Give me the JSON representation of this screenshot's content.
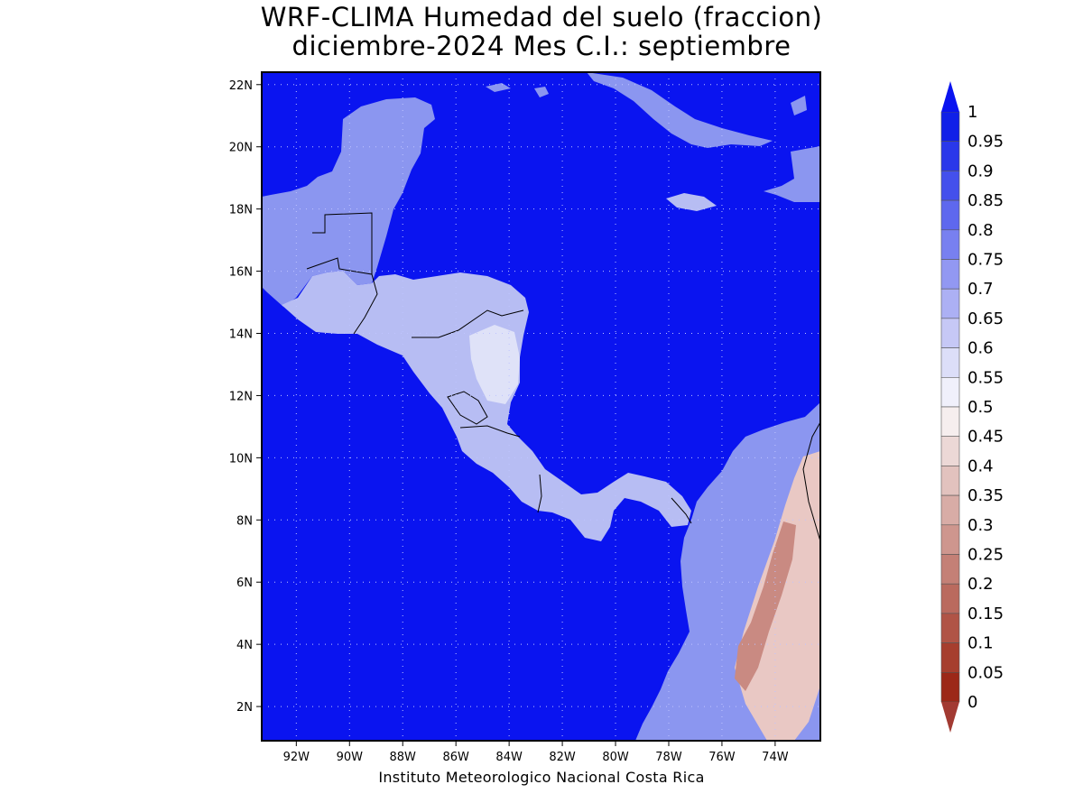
{
  "title": {
    "line1": "WRF-CLIMA Humedad del suelo (fraccion)",
    "line2": "diciembre-2024 Mes C.I.: septiembre"
  },
  "credit": "Instituto Meteorologico Nacional Costa Rica",
  "map": {
    "lon_range": [
      -93.3,
      -72.3
    ],
    "lat_range": [
      0.9,
      22.4
    ],
    "ocean_color": "#0a14f0",
    "grid_style": "dotted",
    "lon_ticks": [
      {
        "value": -92,
        "label": "92W"
      },
      {
        "value": -90,
        "label": "90W"
      },
      {
        "value": -88,
        "label": "88W"
      },
      {
        "value": -86,
        "label": "86W"
      },
      {
        "value": -84,
        "label": "84W"
      },
      {
        "value": -82,
        "label": "82W"
      },
      {
        "value": -80,
        "label": "80W"
      },
      {
        "value": -78,
        "label": "78W"
      },
      {
        "value": -76,
        "label": "76W"
      },
      {
        "value": -74,
        "label": "74W"
      }
    ],
    "lat_ticks": [
      {
        "value": 2,
        "label": "2N"
      },
      {
        "value": 4,
        "label": "4N"
      },
      {
        "value": 6,
        "label": "6N"
      },
      {
        "value": 8,
        "label": "8N"
      },
      {
        "value": 10,
        "label": "10N"
      },
      {
        "value": 12,
        "label": "12N"
      },
      {
        "value": 14,
        "label": "14N"
      },
      {
        "value": 16,
        "label": "16N"
      },
      {
        "value": 18,
        "label": "18N"
      },
      {
        "value": 20,
        "label": "20N"
      },
      {
        "value": 22,
        "label": "22N"
      }
    ],
    "land_colors": {
      "wet": "#8b96f0",
      "moist": "#b7bdf3",
      "medium": "#dfe2f8",
      "dry_high": "#e9c8c4",
      "dry_core": "#c98a82"
    }
  },
  "colorbar": {
    "levels": [
      "1",
      "0.95",
      "0.9",
      "0.85",
      "0.8",
      "0.75",
      "0.7",
      "0.65",
      "0.6",
      "0.55",
      "0.5",
      "0.45",
      "0.4",
      "0.35",
      "0.3",
      "0.25",
      "0.2",
      "0.15",
      "0.1",
      "0.05",
      "0"
    ],
    "colors": [
      "#1020e8",
      "#2a38ea",
      "#4450ec",
      "#5e68ee",
      "#7880f0",
      "#9298f2",
      "#acb0f4",
      "#c6c8f6",
      "#dcdef8",
      "#f0f0fb",
      "#f6eeee",
      "#ecd8d6",
      "#e2c2be",
      "#d8aca6",
      "#ce968e",
      "#c48076",
      "#ba6a5e",
      "#b05446",
      "#a63e2e",
      "#9c2818"
    ],
    "top_arrow_color": "#0a14f0",
    "bottom_arrow_color": "#a23a32"
  }
}
